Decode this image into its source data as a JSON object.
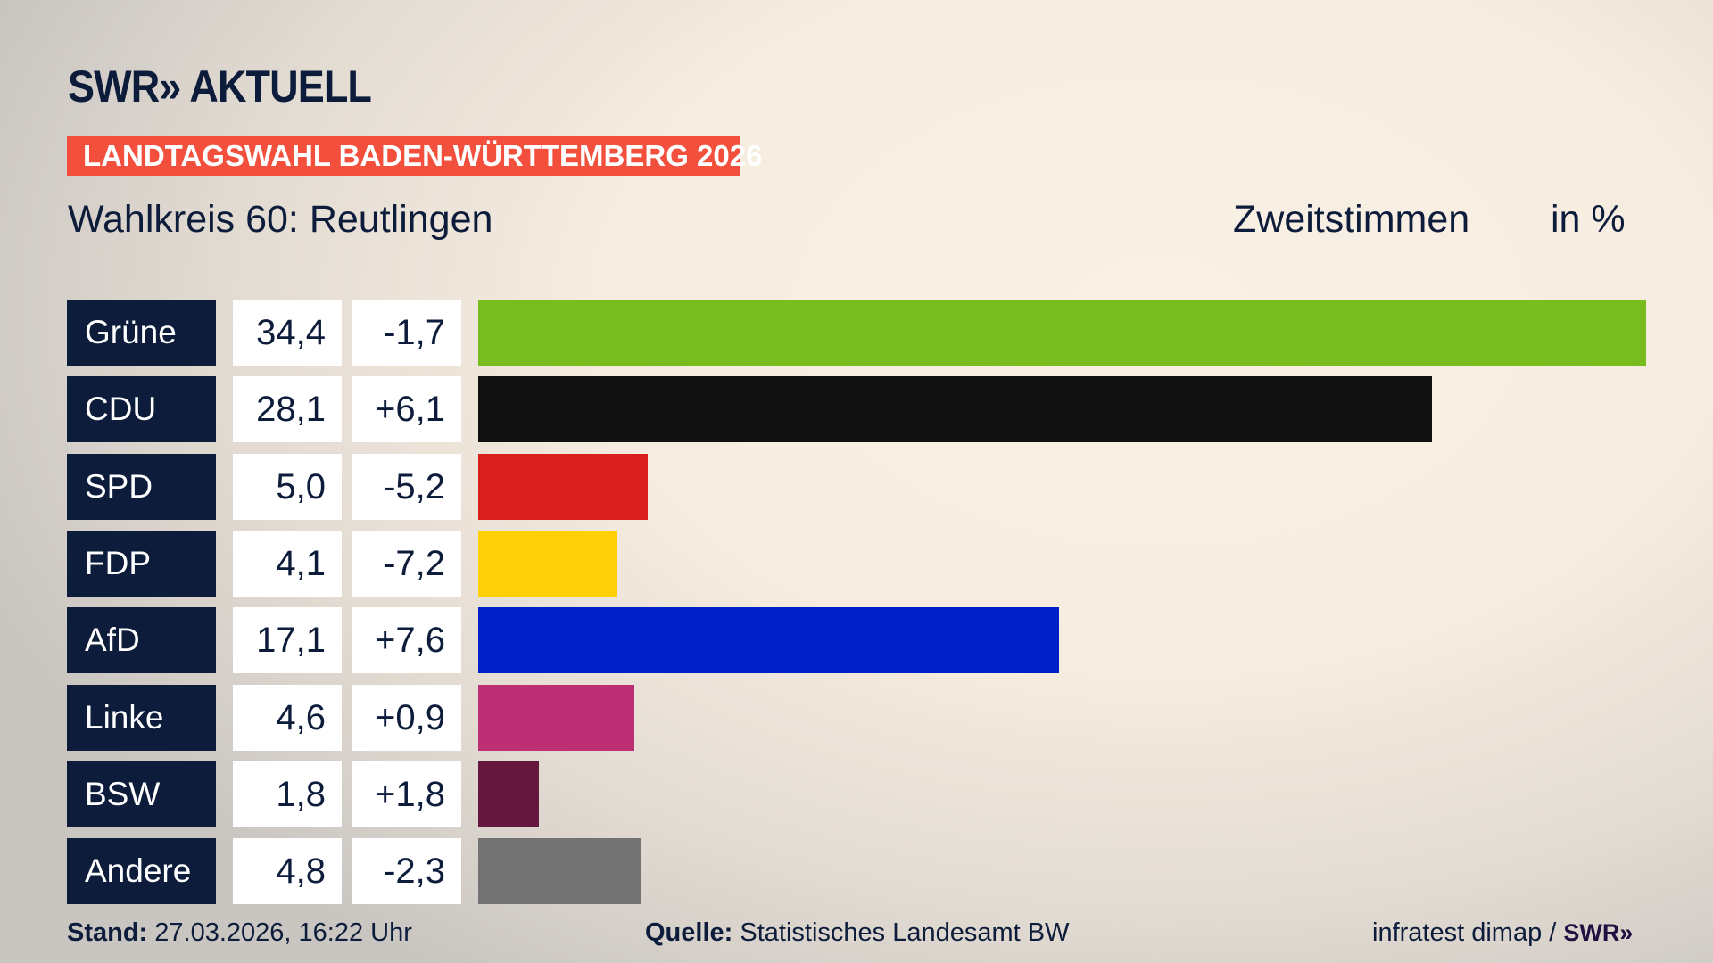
{
  "header": {
    "logo": "SWR» AKTUELL",
    "banner": "LANDTAGSWAHL BADEN-WÜRTTEMBERG 2026",
    "district": "Wahlkreis 60: Reutlingen",
    "vote_type": "Zweitstimmen",
    "unit": "in %"
  },
  "chart_data": {
    "type": "bar",
    "orientation": "horizontal",
    "xlim": [
      0,
      34.4
    ],
    "categories": [
      "Grüne",
      "CDU",
      "SPD",
      "FDP",
      "AfD",
      "Linke",
      "BSW",
      "Andere"
    ],
    "values": [
      34.4,
      28.1,
      5.0,
      4.1,
      17.1,
      4.6,
      1.8,
      4.8
    ],
    "value_labels": [
      "34,4",
      "28,1",
      "5,0",
      "4,1",
      "17,1",
      "4,6",
      "1,8",
      "4,8"
    ],
    "change_labels": [
      "-1,7",
      "+6,1",
      "-5,2",
      "-7,2",
      "+7,6",
      "+0,9",
      "+1,8",
      "-2,3"
    ],
    "changes": [
      -1.7,
      6.1,
      -5.2,
      -7.2,
      7.6,
      0.9,
      1.8,
      -2.3
    ],
    "colors": [
      "#78bc1e",
      "#111111",
      "#d81f1e",
      "#ffcf07",
      "#0020c8",
      "#bc2f74",
      "#65183d",
      "#737373"
    ]
  },
  "footer": {
    "stand_label": "Stand:",
    "stand_value": "27.03.2026, 16:22 Uhr",
    "source_label": "Quelle:",
    "source_value": "Statistisches Landesamt BW",
    "credit": "infratest dimap / ",
    "credit_logo": "SWR»"
  }
}
